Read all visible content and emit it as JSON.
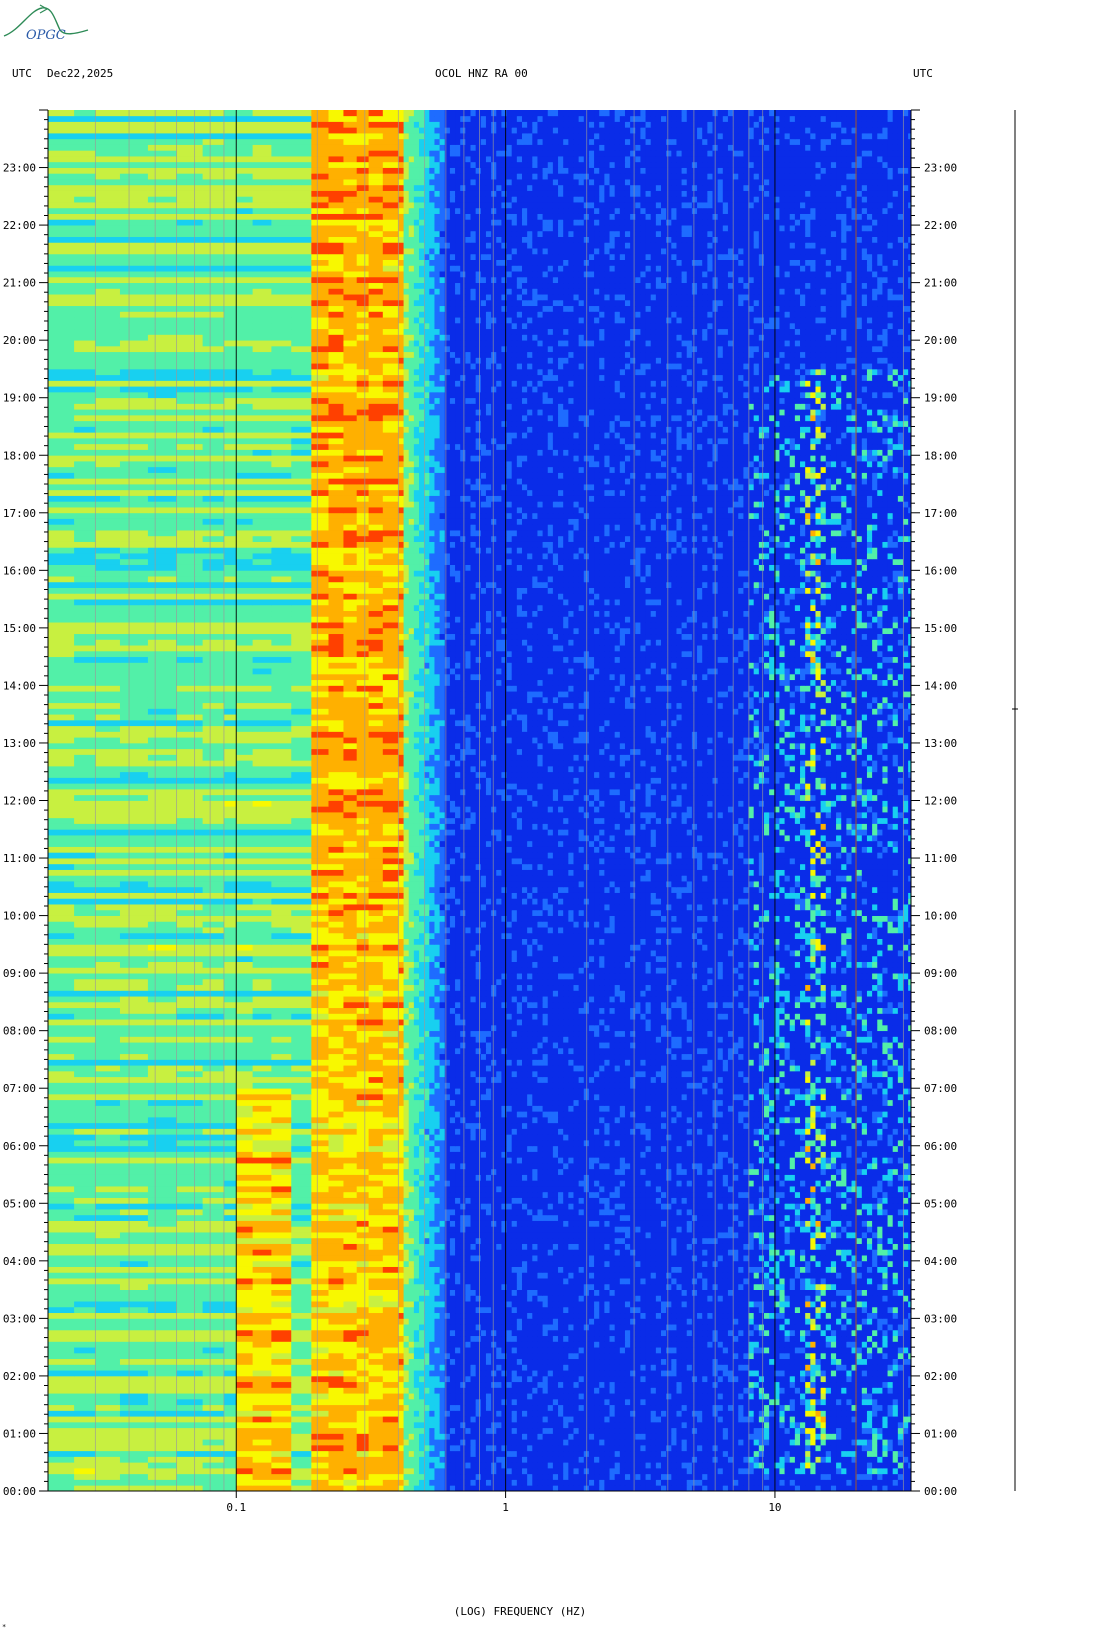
{
  "logo": {
    "text": "OPGC",
    "icon": "opgc-logo-icon"
  },
  "header": {
    "left_tz": "UTC",
    "date": "Dec22,2025",
    "station": "OCOL HNZ RA 00",
    "right_tz": "UTC"
  },
  "chart_data": {
    "type": "heatmap",
    "title": "OCOL HNZ RA 00",
    "xlabel": "(LOG) FREQUENCY (HZ)",
    "x_scale": "log",
    "xlim": [
      0.02,
      32
    ],
    "x_tick_labels": [
      "0.1",
      "1",
      "10"
    ],
    "x_ticks": [
      0.1,
      1,
      10
    ],
    "y_unit": "UTC",
    "ylim_hours": [
      0,
      24
    ],
    "y_tick_labels": [
      "00:00",
      "01:00",
      "02:00",
      "03:00",
      "04:00",
      "05:00",
      "06:00",
      "07:00",
      "08:00",
      "09:00",
      "10:00",
      "11:00",
      "12:00",
      "13:00",
      "14:00",
      "15:00",
      "16:00",
      "17:00",
      "18:00",
      "19:00",
      "20:00",
      "21:00",
      "22:00",
      "23:00"
    ],
    "colormap": [
      "#0000b4",
      "#0a2ce8",
      "#1e6cff",
      "#18d0f0",
      "#52f0a8",
      "#c8f040",
      "#f8f800",
      "#ffb000",
      "#ff4000",
      "#d80000"
    ],
    "grid": true,
    "features": [
      {
        "name": "microseism band",
        "freq_range_hz": [
          0.2,
          0.42
        ],
        "level": "high"
      },
      {
        "name": "low-frequency band",
        "freq_range_hz": [
          0.02,
          0.2
        ],
        "level": "medium"
      },
      {
        "name": "cultural noise",
        "freq_range_hz": [
          8,
          32
        ],
        "active_hours": [
          0.3,
          19.5
        ],
        "level": "medium"
      }
    ]
  },
  "footer": {
    "corner_mark": "*"
  }
}
